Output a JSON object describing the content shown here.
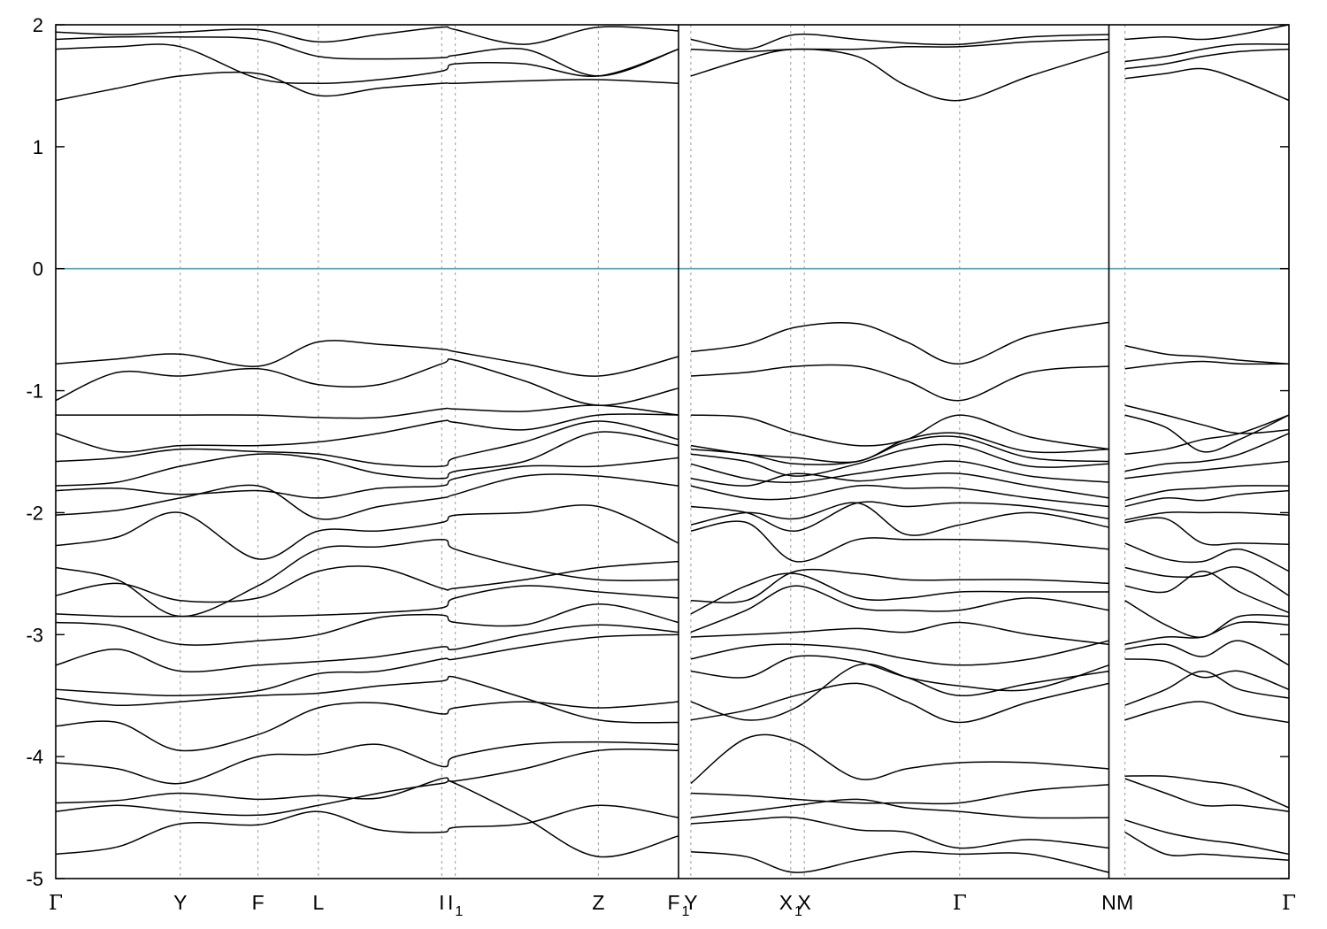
{
  "chart_data": {
    "type": "line",
    "title": "",
    "xlabel": "",
    "ylabel": "",
    "ylim": [
      -5,
      2
    ],
    "xlim": [
      0,
      1
    ],
    "grid": "vertical dashed lines at high-symmetry points",
    "legend": "none",
    "fermi_level": 0,
    "colors": {
      "bands": "#000000",
      "fermi": "#4aa6c6",
      "grid": "#9a9a9a"
    },
    "y_ticks": [
      {
        "value": 2,
        "label": "2"
      },
      {
        "value": 1,
        "label": "1"
      },
      {
        "value": 0,
        "label": "0"
      },
      {
        "value": -1,
        "label": "-1"
      },
      {
        "value": -2,
        "label": "-2"
      },
      {
        "value": -3,
        "label": "-3"
      },
      {
        "value": -4,
        "label": "-4"
      },
      {
        "value": -5,
        "label": "-5"
      }
    ],
    "kpoints": [
      {
        "x": 0.0,
        "label": "Γ",
        "sub": ""
      },
      {
        "x": 0.101,
        "label": "Y",
        "sub": ""
      },
      {
        "x": 0.164,
        "label": "F",
        "sub": ""
      },
      {
        "x": 0.213,
        "label": "L",
        "sub": ""
      },
      {
        "x": 0.313,
        "label": "I",
        "sub": ""
      },
      {
        "x": 0.324,
        "label": "I",
        "sub": "1"
      },
      {
        "x": 0.44,
        "label": "Z",
        "sub": ""
      },
      {
        "x": 0.505,
        "label": "F",
        "sub": "1"
      },
      {
        "x": 0.515,
        "label": "Y",
        "sub": ""
      },
      {
        "x": 0.596,
        "label": "X",
        "sub": "1"
      },
      {
        "x": 0.607,
        "label": "X",
        "sub": ""
      },
      {
        "x": 0.733,
        "label": "Γ",
        "sub": ""
      },
      {
        "x": 0.854,
        "label": "N",
        "sub": ""
      },
      {
        "x": 0.867,
        "label": "M",
        "sub": ""
      },
      {
        "x": 1.0,
        "label": "Γ",
        "sub": ""
      }
    ],
    "segment_breaks": [
      0.505,
      0.854
    ],
    "segments": [
      {
        "x": [
          0.0,
          0.05,
          0.101,
          0.164,
          0.213,
          0.262,
          0.313,
          0.324,
          0.38,
          0.44,
          0.505
        ],
        "bands": [
          [
            -4.8,
            -4.74,
            -4.55,
            -4.56,
            -4.45,
            -4.6,
            -4.62,
            -4.58,
            -4.55,
            -4.4,
            -4.5
          ],
          [
            -4.45,
            -4.4,
            -4.45,
            -4.48,
            -4.4,
            -4.3,
            -4.22,
            -4.22,
            -4.5,
            -4.82,
            -4.65
          ],
          [
            -4.38,
            -4.36,
            -4.3,
            -4.35,
            -4.32,
            -4.34,
            -4.18,
            -4.2,
            -4.1,
            -3.95,
            -3.95
          ],
          [
            -4.05,
            -4.1,
            -4.22,
            -4.0,
            -3.98,
            -3.9,
            -4.08,
            -4.0,
            -3.9,
            -3.88,
            -3.9
          ],
          [
            -3.75,
            -3.72,
            -3.95,
            -3.82,
            -3.6,
            -3.56,
            -3.65,
            -3.6,
            -3.55,
            -3.6,
            -3.55
          ],
          [
            -3.52,
            -3.58,
            -3.55,
            -3.5,
            -3.48,
            -3.42,
            -3.38,
            -3.35,
            -3.52,
            -3.7,
            -3.72
          ],
          [
            -3.45,
            -3.48,
            -3.5,
            -3.46,
            -3.32,
            -3.3,
            -3.2,
            -3.2,
            -3.1,
            -3.02,
            -3.0
          ],
          [
            -3.25,
            -3.12,
            -3.3,
            -3.25,
            -3.22,
            -3.18,
            -3.1,
            -3.12,
            -3.0,
            -2.92,
            -2.98
          ],
          [
            -2.9,
            -2.93,
            -3.08,
            -3.05,
            -3.0,
            -2.86,
            -2.84,
            -2.9,
            -2.92,
            -2.75,
            -2.9
          ],
          [
            -2.83,
            -2.85,
            -2.85,
            -2.85,
            -2.84,
            -2.82,
            -2.78,
            -2.7,
            -2.6,
            -2.65,
            -2.7
          ],
          [
            -2.68,
            -2.58,
            -2.72,
            -2.7,
            -2.48,
            -2.45,
            -2.62,
            -2.62,
            -2.55,
            -2.45,
            -2.4
          ],
          [
            -2.45,
            -2.55,
            -2.85,
            -2.6,
            -2.3,
            -2.28,
            -2.22,
            -2.3,
            -2.45,
            -2.55,
            -2.55
          ],
          [
            -2.27,
            -2.2,
            -2.0,
            -2.38,
            -2.15,
            -2.15,
            -2.08,
            -2.02,
            -2.0,
            -1.95,
            -2.25
          ],
          [
            -2.02,
            -1.98,
            -1.88,
            -1.78,
            -2.05,
            -1.95,
            -1.88,
            -1.85,
            -1.7,
            -1.7,
            -1.78
          ],
          [
            -1.82,
            -1.8,
            -1.85,
            -1.82,
            -1.88,
            -1.8,
            -1.78,
            -1.72,
            -1.62,
            -1.62,
            -1.55
          ],
          [
            -1.78,
            -1.75,
            -1.62,
            -1.52,
            -1.56,
            -1.68,
            -1.72,
            -1.66,
            -1.58,
            -1.34,
            -1.45
          ],
          [
            -1.58,
            -1.55,
            -1.48,
            -1.5,
            -1.52,
            -1.6,
            -1.62,
            -1.55,
            -1.42,
            -1.25,
            -1.4
          ],
          [
            -1.35,
            -1.5,
            -1.45,
            -1.45,
            -1.42,
            -1.35,
            -1.25,
            -1.26,
            -1.32,
            -1.2,
            -1.2
          ],
          [
            -1.2,
            -1.2,
            -1.2,
            -1.2,
            -1.22,
            -1.22,
            -1.15,
            -1.15,
            -1.17,
            -1.12,
            -1.2
          ],
          [
            -1.08,
            -0.85,
            -0.88,
            -0.82,
            -0.95,
            -0.95,
            -0.78,
            -0.75,
            -0.92,
            -1.12,
            -0.98
          ],
          [
            -0.78,
            -0.74,
            -0.7,
            -0.8,
            -0.6,
            -0.62,
            -0.66,
            -0.68,
            -0.78,
            -0.88,
            -0.72
          ],
          [
            1.38,
            1.48,
            1.58,
            1.6,
            1.42,
            1.48,
            1.52,
            1.52,
            1.54,
            1.55,
            1.52
          ],
          [
            1.8,
            1.82,
            1.82,
            1.56,
            1.52,
            1.55,
            1.62,
            1.68,
            1.68,
            1.58,
            1.8
          ],
          [
            1.88,
            1.9,
            1.9,
            1.88,
            1.74,
            1.72,
            1.73,
            1.75,
            1.8,
            1.58,
            1.8
          ],
          [
            1.94,
            1.92,
            1.94,
            1.96,
            1.86,
            1.92,
            1.98,
            1.96,
            1.84,
            1.98,
            1.95
          ]
        ]
      },
      {
        "x": [
          0.515,
          0.56,
          0.6,
          0.65,
          0.69,
          0.733,
          0.79,
          0.854
        ],
        "bands": [
          [
            -4.78,
            -4.82,
            -4.95,
            -4.85,
            -4.78,
            -4.8,
            -4.8,
            -4.95
          ],
          [
            -4.55,
            -4.52,
            -4.5,
            -4.6,
            -4.62,
            -4.75,
            -4.68,
            -4.75
          ],
          [
            -4.5,
            -4.45,
            -4.4,
            -4.35,
            -4.42,
            -4.45,
            -4.5,
            -4.5
          ],
          [
            -4.3,
            -4.32,
            -4.35,
            -4.38,
            -4.38,
            -4.38,
            -4.28,
            -4.23
          ],
          [
            -4.22,
            -3.85,
            -3.88,
            -4.18,
            -4.1,
            -4.05,
            -4.05,
            -4.1
          ],
          [
            -3.7,
            -3.62,
            -3.5,
            -3.4,
            -3.55,
            -3.72,
            -3.55,
            -3.4
          ],
          [
            -3.55,
            -3.7,
            -3.6,
            -3.25,
            -3.35,
            -3.5,
            -3.4,
            -3.3
          ],
          [
            -3.3,
            -3.35,
            -3.18,
            -3.22,
            -3.35,
            -3.42,
            -3.45,
            -3.25
          ],
          [
            -3.2,
            -3.1,
            -3.08,
            -3.12,
            -3.2,
            -3.25,
            -3.2,
            -3.05
          ],
          [
            -3.02,
            -3.0,
            -2.98,
            -2.95,
            -2.98,
            -2.9,
            -3.0,
            -3.08
          ],
          [
            -2.98,
            -2.8,
            -2.6,
            -2.78,
            -2.8,
            -2.8,
            -2.7,
            -2.8
          ],
          [
            -2.83,
            -2.6,
            -2.5,
            -2.7,
            -2.7,
            -2.65,
            -2.65,
            -2.65
          ],
          [
            -2.72,
            -2.72,
            -2.48,
            -2.5,
            -2.55,
            -2.55,
            -2.55,
            -2.58
          ],
          [
            -2.15,
            -2.08,
            -2.4,
            -2.22,
            -2.22,
            -2.22,
            -2.24,
            -2.3
          ],
          [
            -2.1,
            -2.0,
            -2.05,
            -1.92,
            -2.18,
            -2.1,
            -2.0,
            -2.12
          ],
          [
            -1.95,
            -2.0,
            -2.15,
            -1.92,
            -1.95,
            -1.92,
            -1.95,
            -2.05
          ],
          [
            -1.78,
            -1.88,
            -1.88,
            -1.78,
            -1.8,
            -1.8,
            -1.88,
            -1.95
          ],
          [
            -1.72,
            -1.78,
            -1.68,
            -1.74,
            -1.7,
            -1.68,
            -1.78,
            -1.88
          ],
          [
            -1.6,
            -1.72,
            -1.75,
            -1.68,
            -1.62,
            -1.58,
            -1.7,
            -1.75
          ],
          [
            -1.52,
            -1.58,
            -1.7,
            -1.6,
            -1.48,
            -1.45,
            -1.62,
            -1.6
          ],
          [
            -1.48,
            -1.52,
            -1.6,
            -1.58,
            -1.42,
            -1.38,
            -1.55,
            -1.58
          ],
          [
            -1.45,
            -1.52,
            -1.55,
            -1.58,
            -1.4,
            -1.35,
            -1.5,
            -1.48
          ],
          [
            -1.2,
            -1.22,
            -1.35,
            -1.45,
            -1.4,
            -1.2,
            -1.38,
            -1.48
          ],
          [
            -0.88,
            -0.85,
            -0.8,
            -0.8,
            -0.92,
            -1.08,
            -0.85,
            -0.8
          ],
          [
            -0.68,
            -0.62,
            -0.48,
            -0.45,
            -0.6,
            -0.78,
            -0.55,
            -0.44
          ],
          [
            1.58,
            1.72,
            1.8,
            1.74,
            1.5,
            1.38,
            1.58,
            1.78
          ],
          [
            1.8,
            1.78,
            1.8,
            1.8,
            1.82,
            1.82,
            1.86,
            1.88
          ],
          [
            1.88,
            1.8,
            1.92,
            1.88,
            1.85,
            1.84,
            1.9,
            1.92
          ]
        ]
      },
      {
        "x": [
          0.867,
          0.9,
          0.93,
          0.96,
          1.0
        ],
        "bands": [
          [
            -4.62,
            -4.8,
            -4.8,
            -4.82,
            -4.85
          ],
          [
            -4.52,
            -4.62,
            -4.68,
            -4.72,
            -4.8
          ],
          [
            -4.18,
            -4.3,
            -4.4,
            -4.4,
            -4.45
          ],
          [
            -4.16,
            -4.16,
            -4.2,
            -4.25,
            -4.42
          ],
          [
            -3.7,
            -3.6,
            -3.55,
            -3.65,
            -3.72
          ],
          [
            -3.58,
            -3.45,
            -3.3,
            -3.45,
            -3.52
          ],
          [
            -3.2,
            -3.22,
            -3.35,
            -3.3,
            -3.45
          ],
          [
            -3.12,
            -3.08,
            -3.18,
            -3.05,
            -3.25
          ],
          [
            -3.08,
            -3.02,
            -3.02,
            -2.9,
            -2.92
          ],
          [
            -2.72,
            -2.92,
            -3.02,
            -2.85,
            -2.85
          ],
          [
            -2.6,
            -2.65,
            -2.48,
            -2.65,
            -2.82
          ],
          [
            -2.45,
            -2.52,
            -2.52,
            -2.45,
            -2.68
          ],
          [
            -2.25,
            -2.38,
            -2.4,
            -2.3,
            -2.48
          ],
          [
            -2.08,
            -2.05,
            -2.25,
            -2.25,
            -2.26
          ],
          [
            -2.06,
            -2.0,
            -2.0,
            -2.0,
            -2.02
          ],
          [
            -1.95,
            -1.88,
            -1.9,
            -1.85,
            -1.82
          ],
          [
            -1.9,
            -1.82,
            -1.8,
            -1.78,
            -1.78
          ],
          [
            -1.72,
            -1.68,
            -1.65,
            -1.62,
            -1.58
          ],
          [
            -1.66,
            -1.6,
            -1.58,
            -1.52,
            -1.35
          ],
          [
            -1.52,
            -1.48,
            -1.4,
            -1.35,
            -1.2
          ],
          [
            -1.2,
            -1.3,
            -1.5,
            -1.4,
            -1.2
          ],
          [
            -1.12,
            -1.2,
            -1.28,
            -1.35,
            -1.32
          ],
          [
            -0.82,
            -0.78,
            -0.76,
            -0.78,
            -0.78
          ],
          [
            -0.63,
            -0.7,
            -0.72,
            -0.75,
            -0.78
          ],
          [
            1.56,
            1.6,
            1.64,
            1.55,
            1.38
          ],
          [
            1.64,
            1.68,
            1.74,
            1.78,
            1.8
          ],
          [
            1.7,
            1.74,
            1.8,
            1.84,
            1.84
          ],
          [
            1.88,
            1.9,
            1.88,
            1.92,
            2.0
          ]
        ]
      }
    ]
  }
}
